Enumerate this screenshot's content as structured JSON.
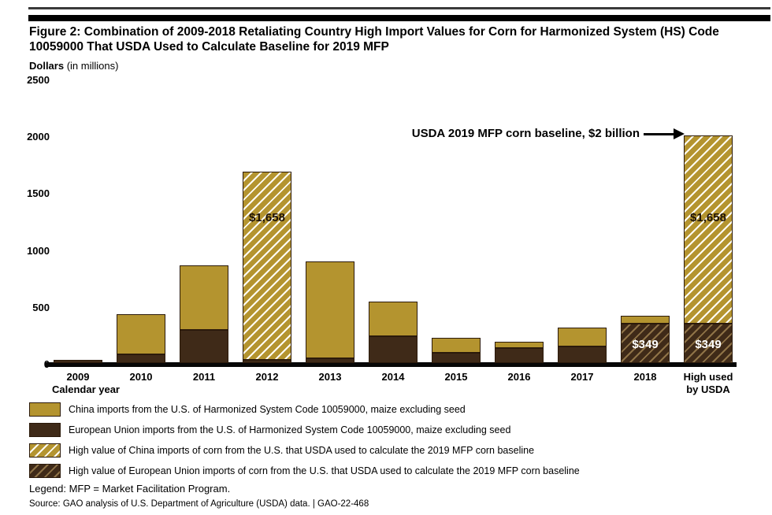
{
  "header": {
    "title_line1": "Figure 2: Combination of 2009-2018 Retaliating Country High Import Values for Corn for Harmonized System (HS) Code",
    "title_line2": "10059000 That USDA Used to Calculate Baseline for 2019 MFP"
  },
  "y_axis_title": {
    "bold": "Dollars",
    "rest": " (in millions)"
  },
  "x_axis_title": "Calendar year",
  "annotation": {
    "text": "USDA 2019 MFP corn baseline, $2 billion"
  },
  "chart_data": {
    "type": "bar",
    "stacked": true,
    "units": "dollars in millions",
    "title": "Combination of 2009-2018 retaliating country high import values for corn (HS Code 10059000) used for 2019 MFP baseline",
    "ylim": [
      0,
      2500
    ],
    "y_ticks": [
      0,
      500,
      1000,
      1500,
      2000,
      2500
    ],
    "grid": false,
    "legend_position": "bottom",
    "colors": {
      "china_fill": "#B4942F",
      "eu_fill": "#3F2A18",
      "gold_hatch_line": "#FFFDF4",
      "dark_hatch_line": "#8F7347",
      "bar_border": "#2B1A0B",
      "axis": "#000000",
      "label_dark": "#1E1205",
      "label_light": "#FFFFFF"
    },
    "series_meta": {
      "china": {
        "fill_key": "china_fill",
        "hatch": false
      },
      "eu": {
        "fill_key": "eu_fill",
        "hatch": false
      },
      "china_high": {
        "fill_key": "china_fill",
        "hatch": true,
        "hatch_key": "gold_hatch_line"
      },
      "eu_high": {
        "fill_key": "eu_fill",
        "hatch": true,
        "hatch_key": "dark_hatch_line"
      }
    },
    "bars": [
      {
        "category": "2009",
        "segments": [
          {
            "series": "eu",
            "value": 30
          }
        ]
      },
      {
        "category": "2010",
        "segments": [
          {
            "series": "eu",
            "value": 75
          },
          {
            "series": "china",
            "value": 355
          }
        ]
      },
      {
        "category": "2011",
        "segments": [
          {
            "series": "eu",
            "value": 290
          },
          {
            "series": "china",
            "value": 570
          }
        ]
      },
      {
        "category": "2012",
        "segments": [
          {
            "series": "eu",
            "value": 30
          },
          {
            "series": "china_high",
            "value": 1658,
            "label": "$1,658",
            "label_y_value": 1290,
            "label_color_key": "label_dark"
          }
        ]
      },
      {
        "category": "2013",
        "segments": [
          {
            "series": "eu",
            "value": 40
          },
          {
            "series": "china",
            "value": 855
          }
        ]
      },
      {
        "category": "2014",
        "segments": [
          {
            "series": "eu",
            "value": 235
          },
          {
            "series": "china",
            "value": 305
          }
        ]
      },
      {
        "category": "2015",
        "segments": [
          {
            "series": "eu",
            "value": 90
          },
          {
            "series": "china",
            "value": 130
          }
        ]
      },
      {
        "category": "2016",
        "segments": [
          {
            "series": "eu",
            "value": 130
          },
          {
            "series": "china",
            "value": 55
          }
        ]
      },
      {
        "category": "2017",
        "segments": [
          {
            "series": "eu",
            "value": 145
          },
          {
            "series": "china",
            "value": 165
          }
        ]
      },
      {
        "category": "2018",
        "segments": [
          {
            "series": "eu_high",
            "value": 349,
            "label": "$349",
            "label_y_value": 175,
            "label_color_key": "label_light"
          },
          {
            "series": "china",
            "value": 70
          }
        ]
      },
      {
        "category": "High used",
        "category_line2": "by USDA",
        "segments": [
          {
            "series": "eu_high",
            "value": 349,
            "label": "$349",
            "label_y_value": 175,
            "label_color_key": "label_light"
          },
          {
            "series": "china_high",
            "value": 1658,
            "label": "$1,658",
            "label_y_value": 1290,
            "label_color_key": "label_dark"
          }
        ]
      }
    ]
  },
  "legend": {
    "items": [
      {
        "series": "china",
        "label": "China imports from the U.S. of Harmonized System Code 10059000, maize excluding seed"
      },
      {
        "series": "eu",
        "label": "European Union imports from the U.S. of Harmonized System Code 10059000, maize excluding seed"
      },
      {
        "series": "china_high",
        "label": "High value of China imports of corn from the U.S. that USDA used to calculate the 2019 MFP corn baseline"
      },
      {
        "series": "eu_high",
        "label": "High value of European Union imports of corn from the U.S. that USDA used to calculate the 2019 MFP corn baseline"
      }
    ]
  },
  "footer": {
    "legend_note": "Legend: MFP = Market Facilitation Program.",
    "source": "Source: GAO analysis of U.S. Department of Agriculture (USDA) data.  |  GAO-22-468"
  }
}
